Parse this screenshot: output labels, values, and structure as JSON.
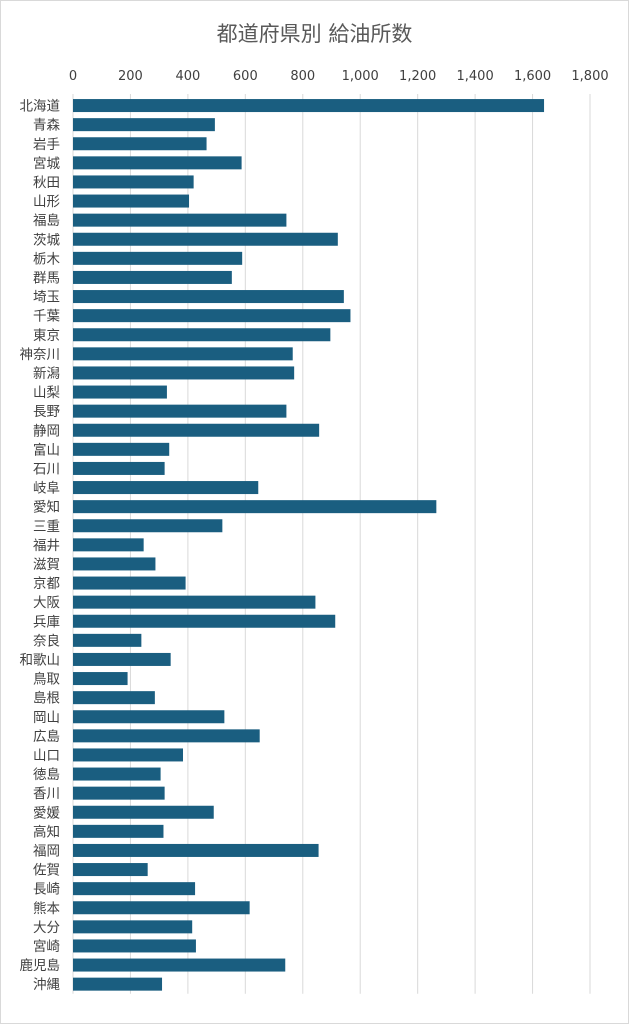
{
  "colors": {
    "bar": "#1a5e80",
    "grid": "#d9d9d9",
    "text": "#404040",
    "title": "#595959"
  },
  "chart_data": {
    "type": "bar",
    "orientation": "horizontal",
    "title": "都道府県別 給油所数",
    "xlabel": "",
    "ylabel": "",
    "xlim": [
      0,
      1800
    ],
    "xticks": [
      "0",
      "200",
      "400",
      "600",
      "800",
      "1,000",
      "1,200",
      "1,400",
      "1,600",
      "1,800"
    ],
    "xtick_values": [
      0,
      200,
      400,
      600,
      800,
      1000,
      1200,
      1400,
      1600,
      1800
    ],
    "axis_position": "top",
    "grid": true,
    "legend": "none",
    "categories": [
      "北海道",
      "青森",
      "岩手",
      "宮城",
      "秋田",
      "山形",
      "福島",
      "茨城",
      "栃木",
      "群馬",
      "埼玉",
      "千葉",
      "東京",
      "神奈川",
      "新潟",
      "山梨",
      "長野",
      "静岡",
      "富山",
      "石川",
      "岐阜",
      "愛知",
      "三重",
      "福井",
      "滋賀",
      "京都",
      "大阪",
      "兵庫",
      "奈良",
      "和歌山",
      "鳥取",
      "島根",
      "岡山",
      "広島",
      "山口",
      "徳島",
      "香川",
      "愛媛",
      "高知",
      "福岡",
      "佐賀",
      "長崎",
      "熊本",
      "大分",
      "宮崎",
      "鹿児島",
      "沖縄"
    ],
    "values": [
      1640,
      494,
      465,
      587,
      420,
      404,
      743,
      922,
      589,
      553,
      943,
      966,
      896,
      765,
      770,
      327,
      743,
      857,
      335,
      319,
      645,
      1265,
      520,
      246,
      287,
      392,
      844,
      913,
      238,
      340,
      190,
      285,
      527,
      650,
      383,
      305,
      319,
      490,
      315,
      855,
      260,
      425,
      615,
      415,
      428,
      739,
      310
    ]
  }
}
